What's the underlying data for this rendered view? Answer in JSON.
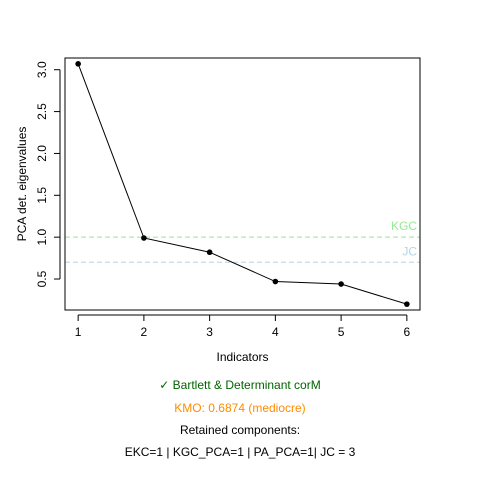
{
  "chart_data": {
    "type": "line",
    "xlabel": "Indicators",
    "ylabel": "PCA det. eigenvalues",
    "x": [
      1,
      2,
      3,
      4,
      5,
      6
    ],
    "values": [
      3.07,
      0.99,
      0.82,
      0.47,
      0.44,
      0.2
    ],
    "xlim": [
      0.8,
      6.2
    ],
    "ylim": [
      0.13,
      3.14
    ],
    "xticks": [
      "1",
      "2",
      "3",
      "4",
      "5",
      "6"
    ],
    "yticks": [
      "0.5",
      "1.0",
      "1.5",
      "2.0",
      "2.5",
      "3.0"
    ],
    "grid": false,
    "reference_lines": [
      {
        "label": "KGC",
        "y": 1.0,
        "color": "#90ee90"
      },
      {
        "label": "JC",
        "y": 0.7,
        "color": "#add8e6"
      }
    ]
  },
  "footer": {
    "bartlett": {
      "check": "✓",
      "text": "Bartlett & Determinant corM",
      "color": "#006400"
    },
    "kmo": {
      "text": "KMO: 0.6874 (mediocre)",
      "color": "#ff8c00"
    },
    "retained_title": "Retained components:",
    "retained_detail": "EKC=1 | KGC_PCA=1 | PA_PCA=1| JC = 3"
  }
}
